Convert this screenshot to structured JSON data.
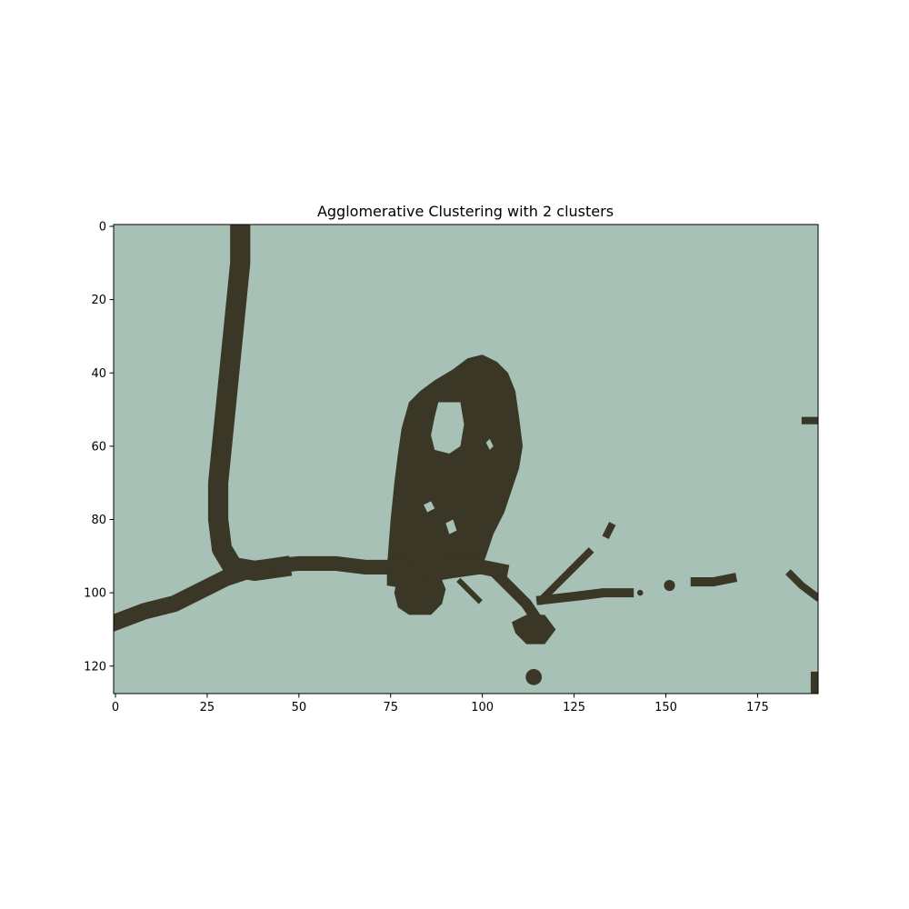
{
  "chart_data": {
    "type": "heatmap",
    "title": "Agglomerative Clustering with 2 clusters",
    "xlabel": "",
    "ylabel": "",
    "xlim": [
      -0.5,
      191.5
    ],
    "ylim": [
      127.5,
      -0.5
    ],
    "x_ticks": [
      0,
      25,
      50,
      75,
      100,
      125,
      150,
      175
    ],
    "y_ticks": [
      0,
      20,
      40,
      60,
      80,
      100,
      120
    ],
    "image_shape": [
      128,
      192
    ],
    "grid": false,
    "legend": "none",
    "clusters": [
      {
        "label": 0,
        "color": "#a7c1b6"
      },
      {
        "label": 1,
        "color": "#3b3726"
      }
    ],
    "cluster1_polylines": [
      {
        "points": [
          [
            34,
            0
          ],
          [
            34,
            10
          ],
          [
            33,
            20
          ],
          [
            32,
            30
          ],
          [
            31,
            40
          ],
          [
            30,
            50
          ],
          [
            29,
            60
          ],
          [
            28,
            70
          ],
          [
            28,
            80
          ],
          [
            29,
            88
          ],
          [
            32,
            93
          ],
          [
            38,
            94
          ],
          [
            45,
            93
          ]
        ],
        "width": 5.5
      },
      {
        "points": [
          [
            0,
            108
          ],
          [
            8,
            105
          ],
          [
            16,
            103
          ],
          [
            24,
            99
          ],
          [
            30,
            96
          ],
          [
            36,
            94
          ]
        ],
        "width": 4.5
      },
      {
        "points": [
          [
            40,
            93
          ],
          [
            50,
            92
          ],
          [
            60,
            92
          ],
          [
            68,
            93
          ],
          [
            74,
            93
          ],
          [
            78,
            93
          ]
        ],
        "width": 4
      },
      {
        "points": [
          [
            76,
            95
          ],
          [
            90,
            93
          ],
          [
            100,
            93
          ],
          [
            105,
            94
          ]
        ],
        "width": 4
      },
      {
        "points": [
          [
            103,
            94
          ],
          [
            106,
            97
          ],
          [
            109,
            100
          ],
          [
            112,
            103
          ],
          [
            114,
            106
          ]
        ],
        "width": 3
      },
      {
        "points": [
          [
            116,
            102
          ],
          [
            121,
            97
          ],
          [
            126,
            92
          ],
          [
            129,
            89
          ]
        ],
        "width": 2
      },
      {
        "points": [
          [
            116,
            102
          ],
          [
            125,
            101
          ],
          [
            133,
            100
          ],
          [
            140,
            100
          ]
        ],
        "width": 2.5
      },
      {
        "points": [
          [
            94,
            97
          ],
          [
            97,
            100
          ],
          [
            99,
            102
          ]
        ],
        "width": 1.5
      },
      {
        "points": [
          [
            158,
            97
          ],
          [
            163,
            97
          ],
          [
            168,
            96
          ]
        ],
        "width": 2.5
      },
      {
        "points": [
          [
            184,
            95
          ],
          [
            187,
            98
          ],
          [
            191,
            101
          ]
        ],
        "width": 2
      },
      {
        "points": [
          [
            188,
            53
          ],
          [
            191,
            53
          ]
        ],
        "width": 2
      },
      {
        "points": [
          [
            134,
            84
          ],
          [
            135,
            82
          ]
        ],
        "width": 2
      },
      {
        "points": [
          [
            191,
            123
          ],
          [
            191,
            127
          ]
        ],
        "width": 3
      }
    ],
    "cluster1_polygons": [
      [
        [
          74,
          93
        ],
        [
          75,
          80
        ],
        [
          76,
          70
        ],
        [
          77,
          62
        ],
        [
          78,
          55
        ],
        [
          80,
          48
        ],
        [
          83,
          45
        ],
        [
          87,
          42
        ],
        [
          92,
          39
        ],
        [
          96,
          36
        ],
        [
          100,
          35
        ],
        [
          104,
          37
        ],
        [
          107,
          40
        ],
        [
          109,
          45
        ],
        [
          110,
          52
        ],
        [
          111,
          60
        ],
        [
          110,
          66
        ],
        [
          108,
          72
        ],
        [
          106,
          78
        ],
        [
          103,
          84
        ],
        [
          101,
          90
        ],
        [
          99,
          95
        ],
        [
          92,
          96
        ],
        [
          86,
          97
        ],
        [
          80,
          99
        ],
        [
          74,
          98
        ]
      ],
      [
        [
          77,
          95
        ],
        [
          88,
          94
        ],
        [
          90,
          99
        ],
        [
          89,
          103
        ],
        [
          86,
          106
        ],
        [
          80,
          106
        ],
        [
          77,
          104
        ],
        [
          76,
          100
        ]
      ],
      [
        [
          108,
          108
        ],
        [
          112,
          106
        ],
        [
          117,
          106
        ],
        [
          120,
          110
        ],
        [
          117,
          114
        ],
        [
          112,
          114
        ],
        [
          109,
          111
        ]
      ]
    ],
    "cluster0_holes": [
      [
        [
          88,
          48
        ],
        [
          94,
          48
        ],
        [
          95,
          54
        ],
        [
          94,
          60
        ],
        [
          91,
          62
        ],
        [
          87,
          61
        ],
        [
          86,
          57
        ],
        [
          87,
          52
        ]
      ],
      [
        [
          101,
          59
        ],
        [
          102,
          58
        ],
        [
          103,
          60
        ],
        [
          102,
          61
        ]
      ],
      [
        [
          84,
          76
        ],
        [
          86,
          75
        ],
        [
          87,
          77
        ],
        [
          85,
          78
        ]
      ],
      [
        [
          90,
          81
        ],
        [
          92,
          80
        ],
        [
          93,
          83
        ],
        [
          91,
          84
        ]
      ]
    ],
    "cluster1_blobs": [
      [
        114,
        123,
        2.2
      ],
      [
        143,
        100,
        0.8
      ],
      [
        151,
        98,
        1.5
      ]
    ]
  }
}
